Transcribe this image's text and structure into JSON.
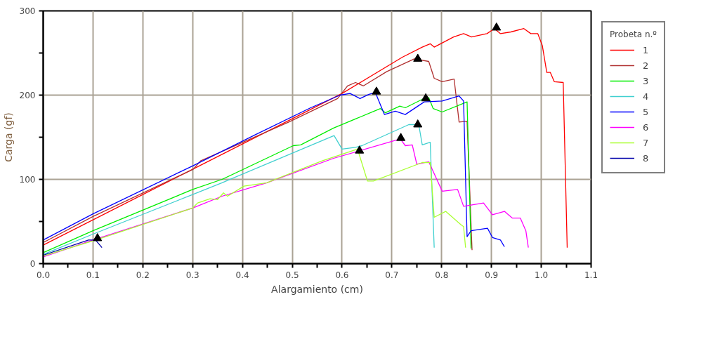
{
  "chart_data": {
    "type": "line",
    "xlabel": "Alargamiento (cm)",
    "ylabel": "Carga (gf)",
    "legend_title": "Probeta n.º",
    "legend": "right",
    "grid": true,
    "xlim": [
      0,
      1.1
    ],
    "ylim": [
      0,
      300
    ],
    "xticks": [
      {
        "value": 0,
        "label": "0.0"
      },
      {
        "value": 0.05,
        "label": null
      },
      {
        "value": 0.1,
        "label": "0.1"
      },
      {
        "value": 0.15,
        "label": null
      },
      {
        "value": 0.2,
        "label": "0.2"
      },
      {
        "value": 0.25,
        "label": null
      },
      {
        "value": 0.3,
        "label": "0.3"
      },
      {
        "value": 0.35,
        "label": null
      },
      {
        "value": 0.4,
        "label": "0.4"
      },
      {
        "value": 0.45,
        "label": null
      },
      {
        "value": 0.5,
        "label": "0.5"
      },
      {
        "value": 0.55,
        "label": null
      },
      {
        "value": 0.6,
        "label": "0.6"
      },
      {
        "value": 0.65,
        "label": null
      },
      {
        "value": 0.7,
        "label": "0.7"
      },
      {
        "value": 0.75,
        "label": null
      },
      {
        "value": 0.8,
        "label": "0.8"
      },
      {
        "value": 0.85,
        "label": null
      },
      {
        "value": 0.9,
        "label": "0.9"
      },
      {
        "value": 0.95,
        "label": null
      },
      {
        "value": 1.0,
        "label": "1.0"
      },
      {
        "value": 1.05,
        "label": null
      },
      {
        "value": 1.1,
        "label": "1.1"
      }
    ],
    "yticks": [
      0,
      {
        "value": 50,
        "label": null
      },
      100,
      {
        "value": 150,
        "label": null
      },
      200,
      {
        "value": 250,
        "label": null
      },
      300
    ],
    "series": [
      {
        "name": "1",
        "color": "#ff0000",
        "x": [
          0,
          0.1,
          0.3,
          0.6,
          0.721,
          0.761,
          0.777,
          0.785,
          0.824,
          0.844,
          0.86,
          0.891,
          0.906,
          0.918,
          0.939,
          0.965,
          0.979,
          0.993,
          1.002,
          1.011,
          1.018,
          1.026,
          1.044,
          1.052
        ],
        "values": [
          22,
          52,
          112,
          202,
          245,
          257,
          261,
          257,
          269,
          273,
          269,
          273,
          279,
          273,
          275,
          279,
          273,
          273,
          259,
          227,
          227,
          216,
          215,
          19
        ]
      },
      {
        "name": "2",
        "color": "#b03030",
        "x": [
          0,
          0.1,
          0.301,
          0.316,
          0.493,
          0.591,
          0.611,
          0.627,
          0.643,
          0.69,
          0.745,
          0.774,
          0.785,
          0.801,
          0.825,
          0.835,
          0.851,
          0.861
        ],
        "values": [
          25,
          56,
          112,
          122,
          168,
          196,
          211,
          215,
          211,
          228,
          243,
          240,
          220,
          216,
          219,
          168,
          169,
          16
        ]
      },
      {
        "name": "3",
        "color": "#00ee00",
        "x": [
          0,
          0.1,
          0.3,
          0.359,
          0.502,
          0.517,
          0.583,
          0.677,
          0.687,
          0.716,
          0.727,
          0.761,
          0.774,
          0.783,
          0.801,
          0.851,
          0.859
        ],
        "values": [
          13,
          39,
          88,
          100,
          140,
          141,
          161,
          184,
          179,
          187,
          185,
          195,
          197,
          184,
          180,
          192,
          18
        ]
      },
      {
        "name": "4",
        "color": "#40d0d0",
        "x": [
          0,
          0.1,
          0.3,
          0.359,
          0.584,
          0.6,
          0.627,
          0.64,
          0.734,
          0.754,
          0.761,
          0.777,
          0.785
        ],
        "values": [
          11,
          35,
          82,
          96,
          152,
          136,
          138,
          140,
          165,
          165,
          141,
          144,
          19
        ]
      },
      {
        "name": "5",
        "color": "#0000ff",
        "x": [
          0,
          0.1,
          0.3,
          0.426,
          0.537,
          0.596,
          0.616,
          0.636,
          0.654,
          0.667,
          0.685,
          0.707,
          0.727,
          0.765,
          0.801,
          0.835,
          0.844,
          0.851,
          0.859,
          0.892,
          0.902,
          0.918,
          0.926
        ],
        "values": [
          28,
          59,
          116,
          153,
          185,
          200,
          202,
          196,
          201,
          203,
          177,
          181,
          177,
          192,
          193,
          199,
          193,
          32,
          39,
          42,
          31,
          28,
          20
        ]
      },
      {
        "name": "6",
        "color": "#ff00ff",
        "x": [
          0,
          0.1,
          0.3,
          0.359,
          0.449,
          0.583,
          0.717,
          0.727,
          0.741,
          0.75,
          0.774,
          0.801,
          0.832,
          0.844,
          0.884,
          0.902,
          0.926,
          0.942,
          0.958,
          0.969,
          0.974
        ],
        "values": [
          8,
          28,
          66,
          80,
          96,
          125,
          148,
          140,
          141,
          118,
          121,
          86,
          88,
          68,
          72,
          58,
          62,
          54,
          54,
          39,
          19
        ]
      },
      {
        "name": "7",
        "color": "#aaff33",
        "x": [
          0,
          0.1,
          0.3,
          0.31,
          0.335,
          0.35,
          0.362,
          0.37,
          0.403,
          0.449,
          0.56,
          0.631,
          0.651,
          0.663,
          0.761,
          0.777,
          0.785,
          0.808,
          0.839,
          0.844,
          0.848
        ],
        "values": [
          9,
          27,
          66,
          72,
          77,
          76,
          84,
          80,
          92,
          96,
          122,
          136,
          98,
          98,
          120,
          120,
          55,
          62,
          46,
          44,
          19
        ]
      },
      {
        "name": "8",
        "color": "#0000aa",
        "x": [
          0,
          0.091,
          0.105,
          0.118
        ],
        "values": [
          10,
          28,
          28,
          19
        ]
      },
      {
        "type": "scatter",
        "marker": "triangle",
        "color": "#000000",
        "x": [
          0.91,
          0.752,
          0.669,
          0.768,
          0.752,
          0.718,
          0.635,
          0.109
        ],
        "values": [
          280,
          243,
          204,
          196,
          165,
          149,
          134,
          30
        ]
      }
    ]
  }
}
